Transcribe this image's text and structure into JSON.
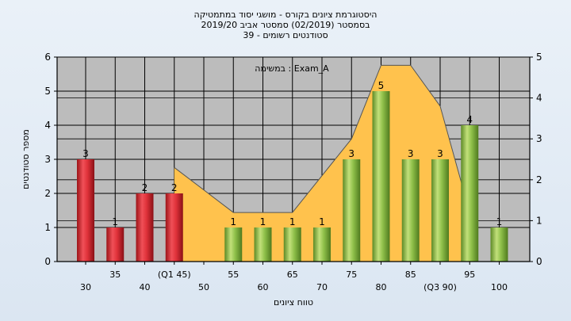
{
  "chart_data": {
    "type": "bar",
    "title_lines": [
      "היסטוגרמת ציונים בקורס - מושגי יסוד במתמטיקה",
      "בסמסטר  (02/2019)  סמסטר אביב 2019/20",
      "סטודנטים רשומים - 39"
    ],
    "annotation": "במשימה : Exam_A",
    "xlabel": "טווח ציונים",
    "ylabel": "מספר סטודנטים",
    "ylim": [
      0,
      6
    ],
    "y_ticks": [
      0,
      1,
      2,
      3,
      4,
      5,
      6
    ],
    "y2lim": [
      0,
      5
    ],
    "y2_ticks": [
      0,
      1,
      2,
      3,
      4,
      5
    ],
    "grid": true,
    "x_tick_labels": [
      "30",
      "35",
      "40",
      "(Q1 45)",
      "50",
      "55",
      "60",
      "65",
      "70",
      "75",
      "80",
      "85",
      "(Q3 90)",
      "95",
      "100"
    ],
    "bars": [
      {
        "x": "30",
        "value": 3,
        "label": "3",
        "color": "#e0323a"
      },
      {
        "x": "35",
        "value": 1,
        "label": "1",
        "color": "#e0323a"
      },
      {
        "x": "40",
        "value": 2,
        "label": "2",
        "color": "#e0323a"
      },
      {
        "x": "45",
        "value": 2,
        "label": "2",
        "color": "#e0323a"
      },
      {
        "x": "55",
        "value": 1,
        "label": "1",
        "color": "#8fc04a"
      },
      {
        "x": "60",
        "value": 1,
        "label": "1",
        "color": "#8fc04a"
      },
      {
        "x": "65",
        "value": 1,
        "label": "1",
        "color": "#8fc04a"
      },
      {
        "x": "70",
        "value": 1,
        "label": "1",
        "color": "#8fc04a"
      },
      {
        "x": "75",
        "value": 3,
        "label": "3",
        "color": "#8fc04a"
      },
      {
        "x": "80",
        "value": 5,
        "label": "5",
        "color": "#8fc04a"
      },
      {
        "x": "85",
        "value": 3,
        "label": "3",
        "color": "#8fc04a"
      },
      {
        "x": "90",
        "value": 3,
        "label": "3",
        "color": "#8fc04a"
      },
      {
        "x": "95",
        "value": 4,
        "label": "4",
        "color": "#8fc04a"
      },
      {
        "x": "100",
        "value": 1,
        "label": "1",
        "color": "#8fc04a"
      }
    ],
    "area_series": {
      "color": "#ffc24d",
      "points": [
        {
          "x": 45,
          "y": 2.3
        },
        {
          "x": 55,
          "y": 1.2
        },
        {
          "x": 65,
          "y": 1.2
        },
        {
          "x": 75,
          "y": 3.0
        },
        {
          "x": 80,
          "y": 4.8
        },
        {
          "x": 85,
          "y": 4.8
        },
        {
          "x": 90,
          "y": 3.8
        },
        {
          "x": 95,
          "y": 1.2
        }
      ]
    },
    "colors": {
      "plot_bg": "#bcbcbc",
      "fail": "#e0323a",
      "pass": "#8fc04a",
      "area": "#ffc24d"
    }
  }
}
